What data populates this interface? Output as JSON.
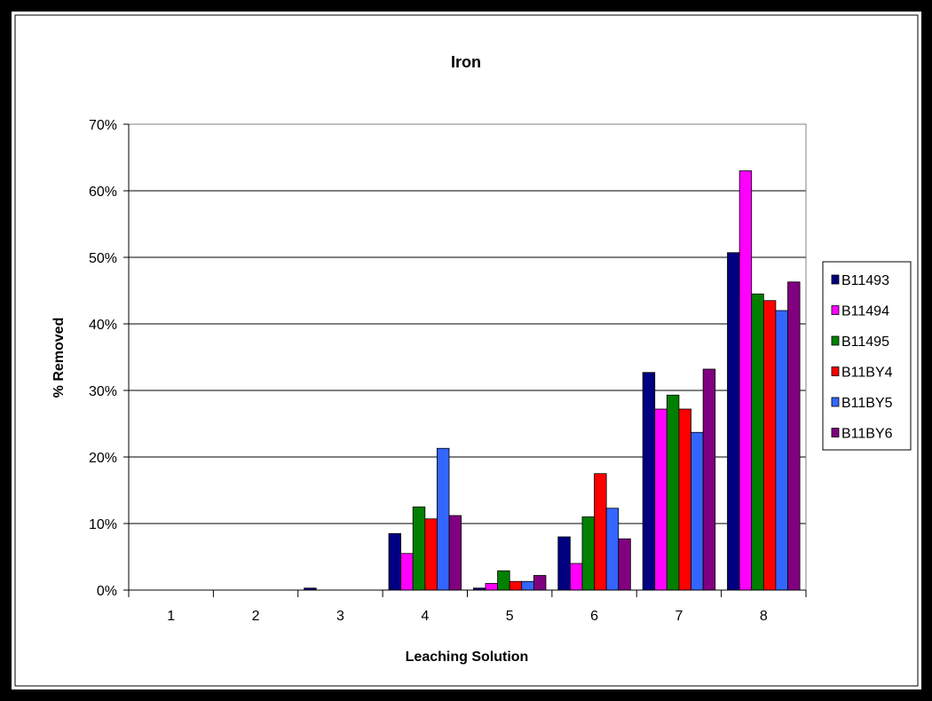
{
  "chart_data": {
    "type": "bar",
    "title": "Iron",
    "xlabel": "Leaching Solution",
    "ylabel": "% Removed",
    "categories": [
      "1",
      "2",
      "3",
      "4",
      "5",
      "6",
      "7",
      "8"
    ],
    "ylim": [
      0,
      0.7
    ],
    "yticks": [
      0,
      0.1,
      0.2,
      0.3,
      0.4,
      0.5,
      0.6,
      0.7
    ],
    "ytick_labels": [
      "0%",
      "10%",
      "20%",
      "30%",
      "40%",
      "50%",
      "60%",
      "70%"
    ],
    "grid": true,
    "legend_position": "right",
    "series": [
      {
        "name": "B11493",
        "color": "#000080",
        "values": [
          0,
          0,
          0.003,
          0.085,
          0.003,
          0.08,
          0.327,
          0.507
        ]
      },
      {
        "name": "B11494",
        "color": "#FF00FF",
        "values": [
          0,
          0,
          0,
          0.055,
          0.01,
          0.04,
          0.272,
          0.63
        ]
      },
      {
        "name": "B11495",
        "color": "#008000",
        "values": [
          0,
          0,
          0,
          0.125,
          0.029,
          0.11,
          0.293,
          0.445
        ]
      },
      {
        "name": "B11BY4",
        "color": "#FF0000",
        "values": [
          0,
          0,
          0,
          0.107,
          0.013,
          0.175,
          0.272,
          0.435
        ]
      },
      {
        "name": "B11BY5",
        "color": "#3366FF",
        "values": [
          0,
          0,
          0,
          0.213,
          0.013,
          0.123,
          0.237,
          0.42
        ]
      },
      {
        "name": "B11BY6",
        "color": "#800080",
        "values": [
          0,
          0,
          0,
          0.112,
          0.022,
          0.077,
          0.332,
          0.463
        ]
      }
    ]
  }
}
